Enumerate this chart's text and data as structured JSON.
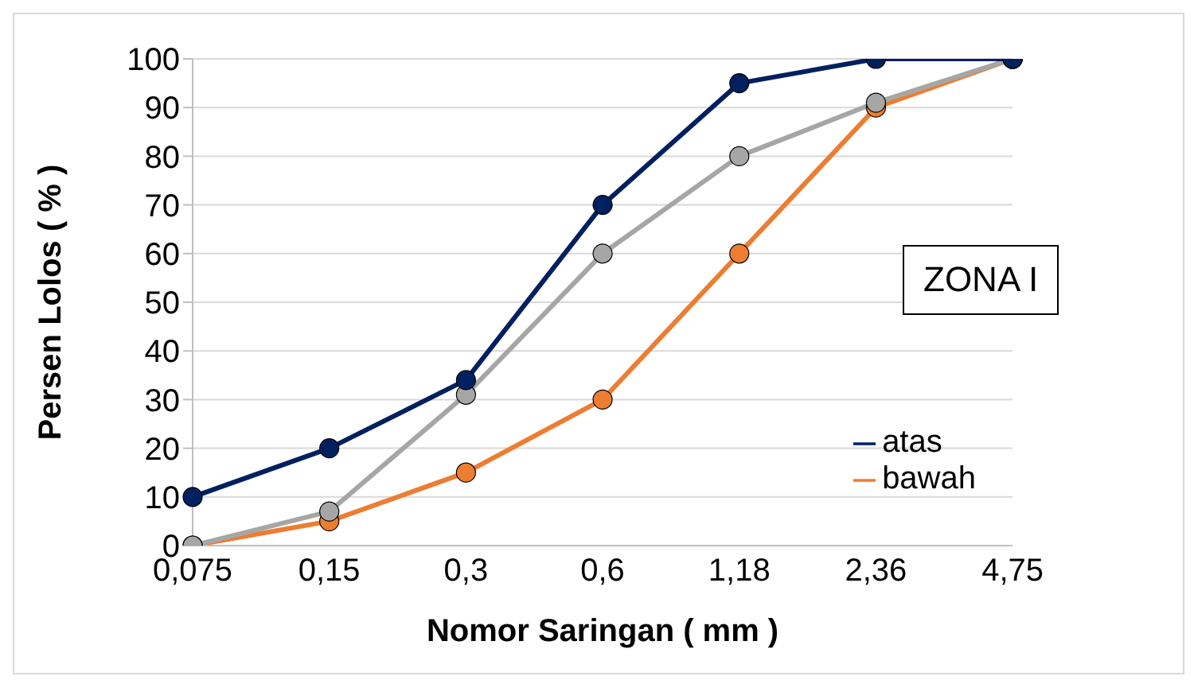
{
  "chart_data": {
    "type": "line",
    "xlabel": "Nomor Saringan ( mm )",
    "ylabel": "Persen Lolos ( % )",
    "categories": [
      "0,075",
      "0,15",
      "0,3",
      "0,6",
      "1,18",
      "2,36",
      "4,75"
    ],
    "series": [
      {
        "name": "atas",
        "color": "#002060",
        "values": [
          10,
          20,
          34,
          70,
          95,
          100,
          100
        ]
      },
      {
        "color": "#a6a6a6",
        "values": [
          0,
          7,
          31,
          60,
          80,
          91,
          100
        ]
      },
      {
        "name": "bawah",
        "color": "#ed7d31",
        "values": [
          0,
          5,
          15,
          30,
          60,
          90,
          100
        ]
      }
    ],
    "ylim": [
      0,
      100
    ],
    "yticks": [
      0,
      10,
      20,
      30,
      40,
      50,
      60,
      70,
      80,
      90,
      100
    ],
    "grid": "y",
    "legend": "bottom right",
    "marker": "circle",
    "line_style": "solid",
    "annotations": [
      "ZONA I"
    ]
  }
}
